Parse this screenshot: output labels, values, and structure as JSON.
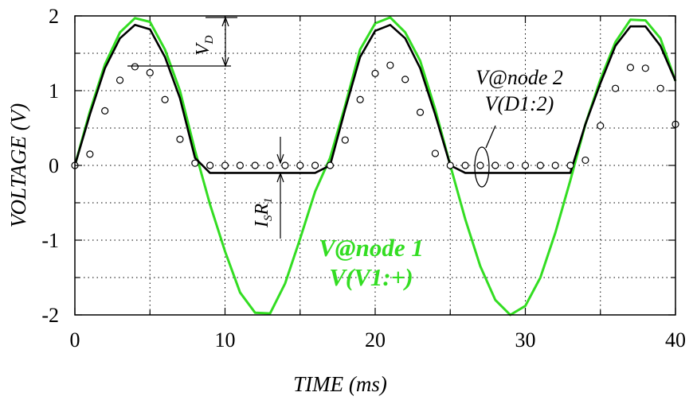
{
  "chart_data": {
    "type": "line",
    "xlabel": "TIME  (ms)",
    "ylabel": "VOLTAGE  (V)",
    "xlim": [
      0,
      40
    ],
    "ylim": [
      -2,
      2
    ],
    "x_ticks": [
      "0",
      "10",
      "20",
      "30",
      "40"
    ],
    "y_ticks": [
      "-2",
      "-1",
      "0",
      "1",
      "2"
    ],
    "grid": true,
    "colors": {
      "node1": "#33dd22",
      "node2": "#000000",
      "markers": "#000000"
    },
    "series": [
      {
        "name": "V@node 1",
        "values": [
          [
            0,
            0
          ],
          [
            1,
            0.72
          ],
          [
            2,
            1.35
          ],
          [
            3,
            1.78
          ],
          [
            4,
            1.97
          ],
          [
            5,
            1.92
          ],
          [
            6,
            1.55
          ],
          [
            7,
            1.0
          ],
          [
            8,
            0.2
          ],
          [
            9,
            -0.52
          ],
          [
            10,
            -1.15
          ],
          [
            11,
            -1.7
          ],
          [
            12,
            -1.97
          ],
          [
            13,
            -1.98
          ],
          [
            14,
            -1.58
          ],
          [
            15,
            -0.98
          ],
          [
            16,
            -0.35
          ],
          [
            17,
            0.1
          ],
          [
            18,
            0.8
          ],
          [
            19,
            1.55
          ],
          [
            20,
            1.9
          ],
          [
            21,
            1.98
          ],
          [
            22,
            1.78
          ],
          [
            23,
            1.4
          ],
          [
            24,
            0.75
          ],
          [
            25,
            0.0
          ],
          [
            26,
            -0.72
          ],
          [
            27,
            -1.35
          ],
          [
            28,
            -1.8
          ],
          [
            29,
            -2.0
          ],
          [
            30,
            -1.88
          ],
          [
            31,
            -1.5
          ],
          [
            32,
            -0.9
          ],
          [
            33,
            -0.2
          ],
          [
            34,
            0.55
          ],
          [
            35,
            1.15
          ],
          [
            36,
            1.65
          ],
          [
            37,
            1.95
          ],
          [
            38,
            1.94
          ],
          [
            39,
            1.7
          ],
          [
            40,
            1.13
          ]
        ]
      },
      {
        "name": "V(D1:2)",
        "values": [
          [
            0,
            0
          ],
          [
            1,
            0.68
          ],
          [
            2,
            1.3
          ],
          [
            3,
            1.7
          ],
          [
            4,
            1.88
          ],
          [
            5,
            1.82
          ],
          [
            6,
            1.45
          ],
          [
            7,
            0.9
          ],
          [
            8,
            0.1
          ],
          [
            9,
            -0.1
          ],
          [
            10,
            -0.1
          ],
          [
            11,
            -0.1
          ],
          [
            12,
            -0.1
          ],
          [
            13,
            -0.1
          ],
          [
            14,
            -0.1
          ],
          [
            15,
            -0.1
          ],
          [
            16,
            -0.1
          ],
          [
            17,
            0.0
          ],
          [
            18,
            0.75
          ],
          [
            19,
            1.45
          ],
          [
            20,
            1.8
          ],
          [
            21,
            1.88
          ],
          [
            22,
            1.7
          ],
          [
            23,
            1.3
          ],
          [
            24,
            0.68
          ],
          [
            25,
            0.0
          ],
          [
            26,
            -0.1
          ],
          [
            27,
            -0.1
          ],
          [
            28,
            -0.1
          ],
          [
            29,
            -0.1
          ],
          [
            30,
            -0.1
          ],
          [
            31,
            -0.1
          ],
          [
            32,
            -0.1
          ],
          [
            33,
            -0.1
          ],
          [
            34,
            0.55
          ],
          [
            35,
            1.1
          ],
          [
            36,
            1.6
          ],
          [
            37,
            1.86
          ],
          [
            38,
            1.86
          ],
          [
            39,
            1.6
          ],
          [
            40,
            1.13
          ]
        ]
      },
      {
        "name": "V@node 2",
        "values": [
          [
            0,
            0
          ],
          [
            1,
            0.15
          ],
          [
            2,
            0.73
          ],
          [
            3,
            1.14
          ],
          [
            4,
            1.32
          ],
          [
            5,
            1.24
          ],
          [
            6,
            0.88
          ],
          [
            7,
            0.35
          ],
          [
            8,
            0.03
          ],
          [
            9,
            0
          ],
          [
            10,
            0
          ],
          [
            11,
            0
          ],
          [
            12,
            0
          ],
          [
            13,
            0
          ],
          [
            14,
            0
          ],
          [
            15,
            0
          ],
          [
            16,
            0
          ],
          [
            17,
            0
          ],
          [
            18,
            0.34
          ],
          [
            19,
            0.88
          ],
          [
            20,
            1.23
          ],
          [
            21,
            1.34
          ],
          [
            22,
            1.15
          ],
          [
            23,
            0.71
          ],
          [
            24,
            0.16
          ],
          [
            25,
            0
          ],
          [
            26,
            0
          ],
          [
            27,
            0
          ],
          [
            28,
            0
          ],
          [
            29,
            0
          ],
          [
            30,
            0
          ],
          [
            31,
            0
          ],
          [
            32,
            0
          ],
          [
            33,
            0
          ],
          [
            34,
            0.07
          ],
          [
            35,
            0.53
          ],
          [
            36,
            1.03
          ],
          [
            37,
            1.31
          ],
          [
            38,
            1.3
          ],
          [
            39,
            1.03
          ],
          [
            40,
            0.55
          ]
        ]
      }
    ],
    "annotations": {
      "vd_main": "V",
      "vd_sub": "D",
      "isr_I": "I",
      "isr_S": "S",
      "isr_R": "R",
      "isr_1": "1",
      "node2_line1": "V@node 2",
      "node2_line2": "V(D1:2)",
      "node1_line1": "V@node 1",
      "node1_line2": "V(V1:+)"
    }
  }
}
